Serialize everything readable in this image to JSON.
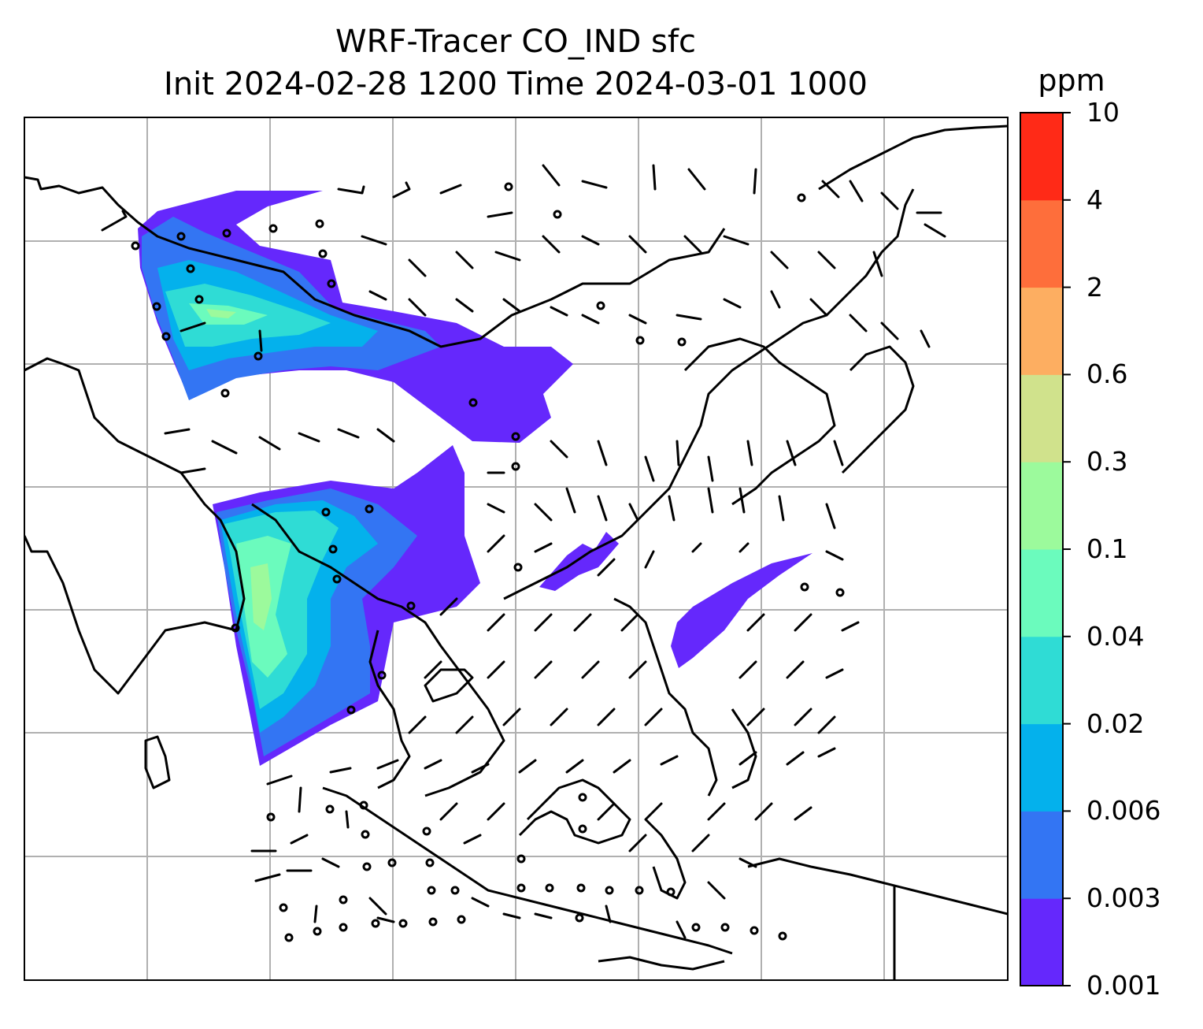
{
  "title": {
    "line1": "WRF-Tracer CO_IND sfc",
    "line2": "Init 2024-02-28 1200 Time 2024-03-01 1000"
  },
  "map": {
    "type": "filled-contour with wind barbs",
    "field": "CO_IND surface tracer concentration",
    "gridlines": true,
    "coastlines": true,
    "colors": {
      "coast": "#000000",
      "grid": "#b0b0b0",
      "barb": "#000000"
    }
  },
  "colorbar": {
    "unit": "ppm",
    "levels": [
      "0.001",
      "0.003",
      "0.006",
      "0.02",
      "0.04",
      "0.1",
      "0.3",
      "0.6",
      "2",
      "4",
      "10"
    ],
    "colors": [
      "#6528fc",
      "#3375f3",
      "#04b1ec",
      "#2fdcd5",
      "#6bfbbd",
      "#9cfa9c",
      "#d0e28c",
      "#fdae61",
      "#fe6e3b",
      "#ff2a17"
    ]
  }
}
